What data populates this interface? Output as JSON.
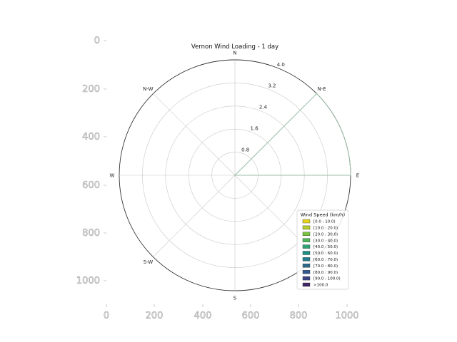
{
  "chart_data": {
    "type": "windrose",
    "title": "Vernon Wind Loading - 1 day",
    "directions": [
      {
        "label": "N",
        "angle": 0
      },
      {
        "label": "N-E",
        "angle": 45
      },
      {
        "label": "E",
        "angle": 90
      },
      {
        "label": "S",
        "angle": 180
      },
      {
        "label": "S-W",
        "angle": 225
      },
      {
        "label": "W",
        "angle": 270
      },
      {
        "label": "N-W",
        "angle": 315
      }
    ],
    "radial_ticks": [
      0.8,
      1.6,
      2.4,
      3.2,
      4.0
    ],
    "radial_tick_labels": [
      "0.8",
      "1.6",
      "2.4",
      "3.2",
      "4.0"
    ],
    "rmax": 4.0,
    "petals": [
      {
        "bin": "[0.0 : 10.0)",
        "angle_start": 45,
        "angle_end": 90,
        "value": 4.0
      }
    ],
    "outer_axes": {
      "x_ticks": [
        "0",
        "200",
        "400",
        "600",
        "800",
        "1000"
      ],
      "y_ticks": [
        "0",
        "200",
        "400",
        "600",
        "800",
        "1000"
      ]
    },
    "legend": {
      "title": "Wind Speed (km/h)",
      "placement": "lower-right",
      "entries": [
        {
          "label": "[0.0 : 10.0)",
          "color": "#e5d51a"
        },
        {
          "label": "[10.0 : 20.0)",
          "color": "#b2cf2a"
        },
        {
          "label": "[20.0 : 30.0)",
          "color": "#79c33f"
        },
        {
          "label": "[30.0 : 40.0)",
          "color": "#4cb65a"
        },
        {
          "label": "[40.0 : 50.0)",
          "color": "#2ea374"
        },
        {
          "label": "[50.0 : 60.0)",
          "color": "#1f8f84"
        },
        {
          "label": "[60.0 : 70.0)",
          "color": "#237c8b"
        },
        {
          "label": "[70.0 : 80.0)",
          "color": "#2b6a8d"
        },
        {
          "label": "[80.0 : 90.0)",
          "color": "#33588b"
        },
        {
          "label": "[90.0 : 100.0)",
          "color": "#3b4282"
        },
        {
          "label": ">100.0",
          "color": "#3e2764"
        }
      ]
    },
    "petal_color": "#9bbfa9"
  }
}
